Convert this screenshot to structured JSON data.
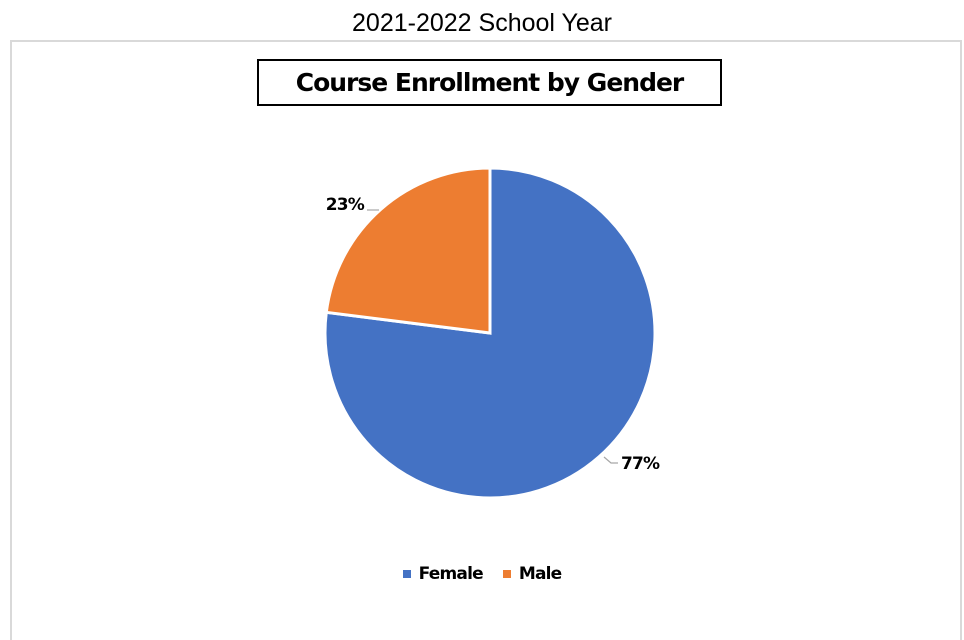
{
  "page_title": "2021-2022 School Year",
  "chart_data": {
    "type": "pie",
    "title": "Course Enrollment by Gender",
    "categories": [
      "Female",
      "Male"
    ],
    "values": [
      77,
      23
    ],
    "data_labels": [
      "77%",
      "23%"
    ],
    "colors": [
      "#4472c4",
      "#ed7d31"
    ],
    "legend_position": "bottom"
  },
  "legend": [
    {
      "label": "Female",
      "color": "#4472c4"
    },
    {
      "label": "Male",
      "color": "#ed7d31"
    }
  ]
}
